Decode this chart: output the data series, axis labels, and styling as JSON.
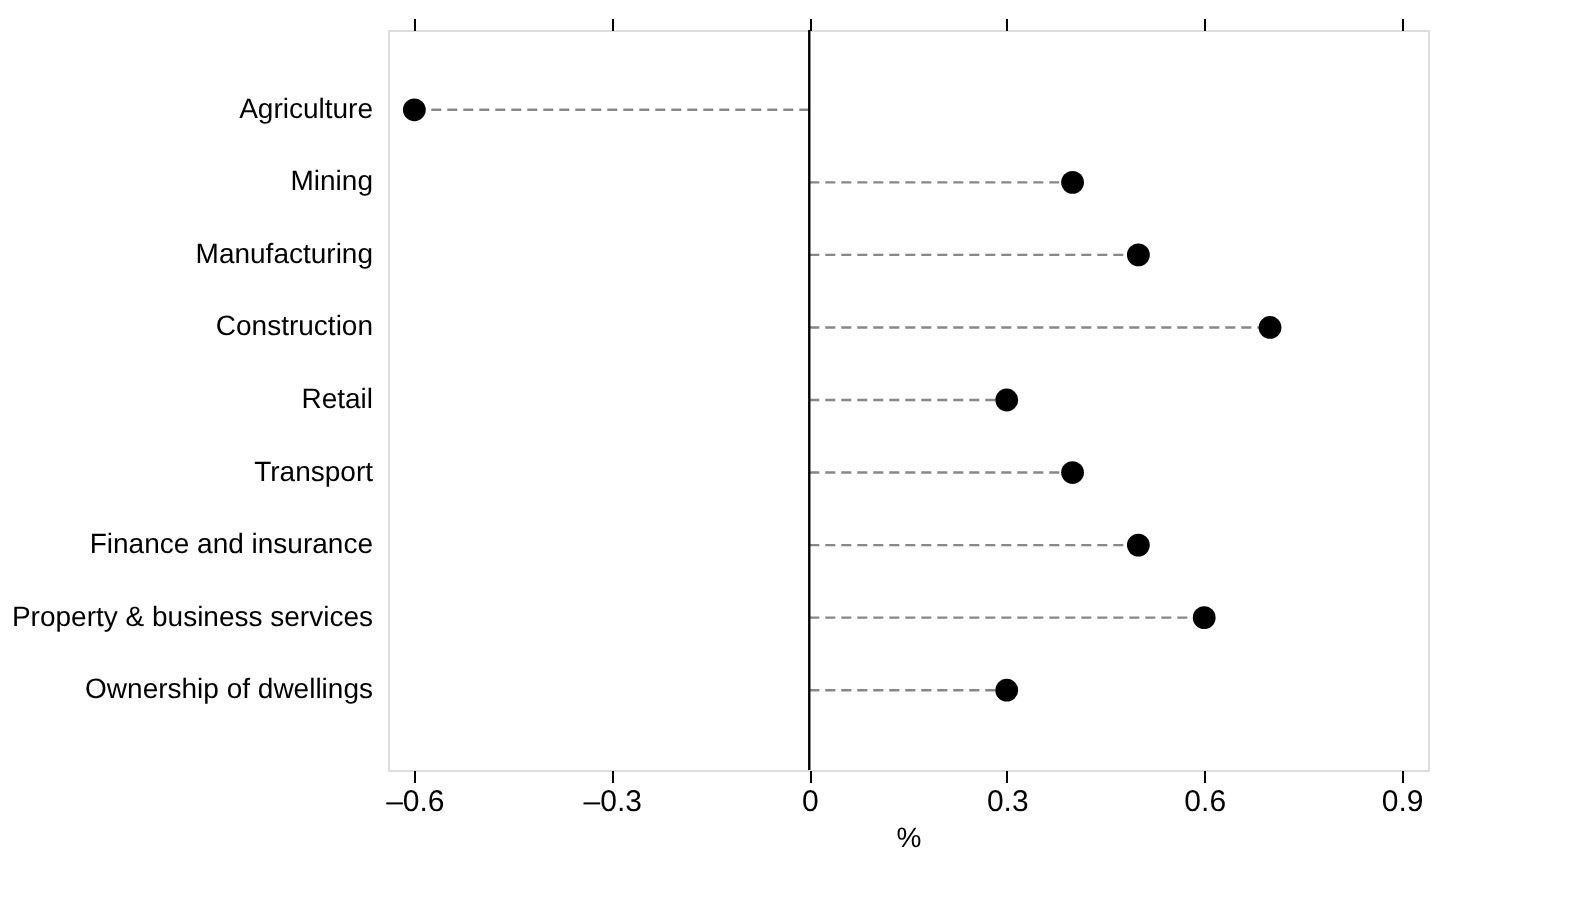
{
  "chart_data": {
    "type": "lollipop",
    "orientation": "horizontal",
    "xlabel": "%",
    "categories": [
      "Agriculture",
      "Mining",
      "Manufacturing",
      "Construction",
      "Retail",
      "Transport",
      "Finance and insurance",
      "Property & business services",
      "Ownership of dwellings"
    ],
    "values": [
      -0.6,
      0.4,
      0.5,
      0.7,
      0.3,
      0.4,
      0.5,
      0.6,
      0.3
    ],
    "color": "#000000",
    "marker": "circle",
    "line_style": "dashed",
    "xlim": [
      -0.64,
      0.94
    ],
    "xticks": [
      {
        "value": -0.6,
        "label": "–0.6"
      },
      {
        "value": -0.3,
        "label": "–0.3"
      },
      0,
      0.3,
      0.6,
      0.9
    ],
    "ref_lines": [
      {
        "axis": "x",
        "value": 0,
        "color": "#000000"
      }
    ]
  }
}
